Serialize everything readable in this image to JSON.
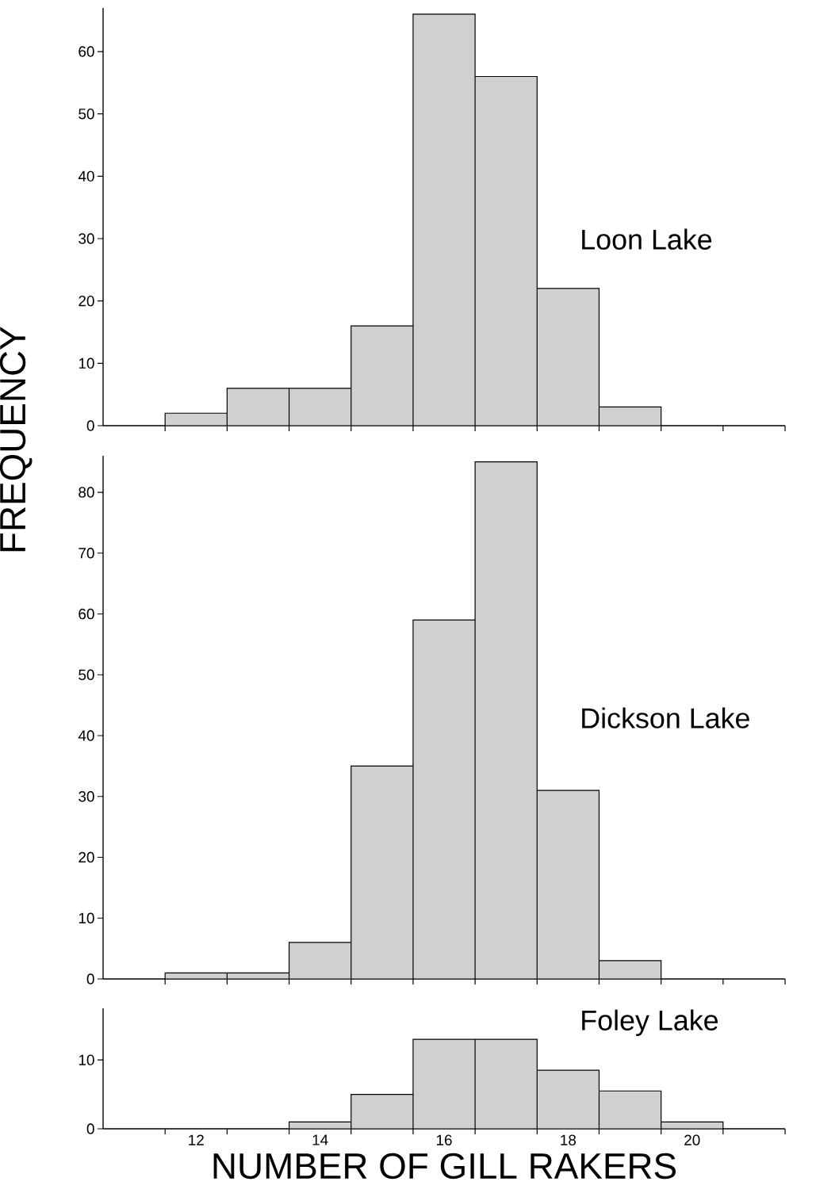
{
  "chart_data": [
    {
      "type": "histogram",
      "title": "Loon Lake",
      "bins": [
        11.5,
        12.5,
        13.5,
        14.5,
        15.5,
        16.5,
        17.5,
        18.5,
        19.5
      ],
      "values": [
        2,
        6,
        6,
        16,
        66,
        56,
        22,
        3
      ],
      "color": "#d0d0d0",
      "xlim": [
        10.5,
        21.5
      ],
      "ylim": [
        0,
        67
      ],
      "yticks": [
        0,
        10,
        20,
        30,
        40,
        50,
        60
      ],
      "xticks": [
        {
          "value": 11.5,
          "label": null
        },
        {
          "value": 12.5,
          "label": null
        },
        {
          "value": 13.5,
          "label": null
        },
        {
          "value": 14.5,
          "label": null
        },
        {
          "value": 15.5,
          "label": null
        },
        {
          "value": 16.5,
          "label": null
        },
        {
          "value": 17.5,
          "label": null
        },
        {
          "value": 18.5,
          "label": null
        },
        {
          "value": 19.5,
          "label": null
        },
        {
          "value": 20.5,
          "label": null
        },
        {
          "value": 21.5,
          "label": null
        }
      ],
      "tick_labels": "y"
    },
    {
      "type": "histogram",
      "title": "Dickson Lake",
      "ylabel": "FREQUENCY",
      "bins": [
        11.5,
        12.5,
        13.5,
        14.5,
        15.5,
        16.5,
        17.5,
        18.5,
        19.5
      ],
      "values": [
        1,
        1,
        6,
        35,
        59,
        85,
        31,
        3
      ],
      "color": "#d0d0d0",
      "xlim": [
        10.5,
        21.5
      ],
      "ylim": [
        0,
        86
      ],
      "yticks": [
        0,
        10,
        20,
        30,
        40,
        50,
        60,
        70,
        80
      ],
      "xticks": [
        {
          "value": 11.5,
          "label": null
        },
        {
          "value": 12.5,
          "label": null
        },
        {
          "value": 13.5,
          "label": null
        },
        {
          "value": 14.5,
          "label": null
        },
        {
          "value": 15.5,
          "label": null
        },
        {
          "value": 16.5,
          "label": null
        },
        {
          "value": 17.5,
          "label": null
        },
        {
          "value": 18.5,
          "label": null
        },
        {
          "value": 19.5,
          "label": null
        },
        {
          "value": 20.5,
          "label": null
        },
        {
          "value": 21.5,
          "label": null
        }
      ],
      "tick_labels": "y"
    },
    {
      "type": "histogram",
      "title": "Foley Lake",
      "xlabel": "NUMBER OF GILL RAKERS",
      "bins": [
        13.5,
        14.5,
        15.5,
        16.5,
        17.5,
        18.5,
        19.5,
        20.5
      ],
      "values": [
        1,
        5,
        13,
        13,
        8.5,
        5.5,
        1
      ],
      "color": "#d0d0d0",
      "xlim": [
        10.5,
        21.5
      ],
      "ylim": [
        0,
        17.5
      ],
      "yticks": [
        0,
        10
      ],
      "xticks": [
        {
          "value": 11.5,
          "label": null
        },
        {
          "value": 12,
          "label": "12"
        },
        {
          "value": 12.5,
          "label": null
        },
        {
          "value": 13.5,
          "label": null
        },
        {
          "value": 14,
          "label": "14"
        },
        {
          "value": 14.5,
          "label": null
        },
        {
          "value": 15.5,
          "label": null
        },
        {
          "value": 16,
          "label": "16"
        },
        {
          "value": 16.5,
          "label": null
        },
        {
          "value": 17.5,
          "label": null
        },
        {
          "value": 18,
          "label": "18"
        },
        {
          "value": 18.5,
          "label": null
        },
        {
          "value": 19.5,
          "label": null
        },
        {
          "value": 20,
          "label": "20"
        },
        {
          "value": 20.5,
          "label": null
        },
        {
          "value": 21.5,
          "label": null
        }
      ]
    }
  ]
}
